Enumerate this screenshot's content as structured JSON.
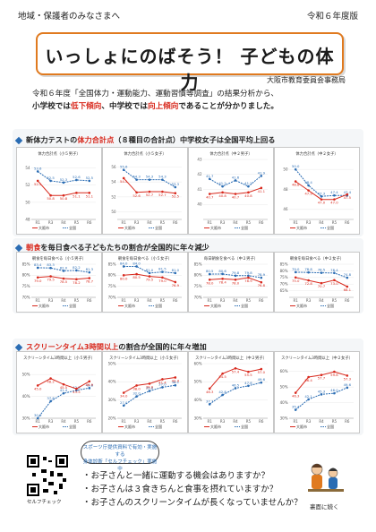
{
  "header": {
    "audience": "地域・保護者のみなさまへ",
    "year": "令和６年度版"
  },
  "title": "いっしょにのばそう！ 子どもの体力",
  "organization": "大阪市教育委員会事務局",
  "intro": {
    "line1": "令和６年度「全国体力・運動能力、運動習慣等調査」の結果分析から、",
    "line2_a": "小学校では",
    "line2_b": "低下傾向",
    "line2_c": "、中学校では",
    "line2_d": "向上傾向",
    "line2_e": "であることが分かりました。"
  },
  "sections": {
    "s1": {
      "pre": "新体力テストの",
      "em": "体力合計点",
      "post": "（８種目の合計点）中学校女子は全国平均上回る"
    },
    "s2": {
      "pre": "",
      "em": "朝食",
      "post": "を毎日食べる子どもたちの割合が全国的に年々減少"
    },
    "s3": {
      "pre": "",
      "em": "スクリーンタイム3時間以上",
      "post": "の割合が全国的に年々増加"
    }
  },
  "colors": {
    "osaka": "#d8281c",
    "national": "#2a6cb3",
    "accent": "#e07a1f"
  },
  "legend": {
    "osaka": "大阪市",
    "national": "全国"
  },
  "categories": [
    "R1",
    "R3",
    "R4",
    "R5",
    "R6"
  ],
  "chart_data": [
    {
      "type": "line",
      "group": "fitness",
      "title": "体力合計点（小５男子）",
      "ylim": [
        48,
        55
      ],
      "ticks": [
        48,
        50,
        52,
        54
      ],
      "series": [
        {
          "name": "全国",
          "values": [
            53.6,
            52.5,
            52.3,
            52.6,
            52.5
          ]
        },
        {
          "name": "大阪市",
          "values": [
            52.5,
            50.8,
            50.8,
            51.1,
            51.1
          ]
        }
      ]
    },
    {
      "type": "line",
      "group": "fitness",
      "title": "体力合計点（小５女子）",
      "ylim": [
        49,
        57
      ],
      "ticks": [
        50,
        52,
        54,
        56
      ],
      "series": [
        {
          "name": "全国",
          "values": [
            55.6,
            54.3,
            54.3,
            54.3,
            53.3
          ]
        },
        {
          "name": "大阪市",
          "values": [
            54.5,
            52.6,
            52.7,
            52.7,
            52.5
          ]
        }
      ]
    },
    {
      "type": "line",
      "group": "fitness",
      "title": "体力合計点（中２男子）",
      "ylim": [
        39,
        43
      ],
      "ticks": [
        40,
        41,
        42,
        43
      ],
      "series": [
        {
          "name": "全国",
          "values": [
            41.7,
            41.2,
            41.6,
            41.2,
            41.9
          ]
        },
        {
          "name": "大阪市",
          "values": [
            40.7,
            40.8,
            40.7,
            40.8,
            41.1
          ]
        }
      ]
    },
    {
      "type": "line",
      "group": "fitness",
      "title": "体力合計点（中２女子）",
      "ylim": [
        45,
        51
      ],
      "ticks": [
        46,
        48,
        50
      ],
      "series": [
        {
          "name": "全国",
          "values": [
            50.0,
            48.4,
            47.3,
            47.4,
            47.4
          ]
        },
        {
          "name": "大阪市",
          "values": [
            48.8,
            47.9,
            47.0,
            47.0,
            47.5
          ]
        }
      ]
    },
    {
      "type": "line",
      "group": "breakfast",
      "title": "朝食を毎日食べる（小５男子）",
      "ylim": [
        70,
        85
      ],
      "ticks": [
        70,
        75,
        80,
        85
      ],
      "unit": "%",
      "series": [
        {
          "name": "全国",
          "values": [
            83.4,
            83.3,
            82.0,
            82.2,
            81.3
          ]
        },
        {
          "name": "大阪市",
          "values": [
            79.0,
            79.5,
            78.5,
            78.2,
            78.7
          ]
        }
      ]
    },
    {
      "type": "line",
      "group": "breakfast",
      "title": "朝食を毎日食べる（小５女子）",
      "ylim": [
        70,
        85
      ],
      "ticks": [
        70,
        75,
        80,
        85
      ],
      "unit": "%",
      "series": [
        {
          "name": "全国",
          "values": [
            84.0,
            84.0,
            81.0,
            81.5,
            81.0
          ]
        },
        {
          "name": "大阪市",
          "values": [
            80.0,
            80.5,
            79.5,
            79.0,
            76.9
          ]
        }
      ]
    },
    {
      "type": "line",
      "group": "breakfast",
      "title": "毎日朝食を食べる（中２男子）",
      "ylim": [
        70,
        85
      ],
      "ticks": [
        70,
        75,
        80,
        85
      ],
      "unit": "%",
      "series": [
        {
          "name": "全国",
          "values": [
            80.5,
            80.6,
            79.8,
            79.8,
            78.9
          ]
        },
        {
          "name": "大阪市",
          "values": [
            78.0,
            78.4,
            78.0,
            78.9,
            76.8
          ]
        }
      ]
    },
    {
      "type": "line",
      "group": "breakfast",
      "title": "朝食を毎日食べる（中２女子）",
      "ylim": [
        60,
        85
      ],
      "ticks": [
        65,
        70,
        75,
        80,
        85
      ],
      "unit": "%",
      "series": [
        {
          "name": "全国",
          "values": [
            79.0,
            78.8,
            78.5,
            78.4,
            74.8
          ]
        },
        {
          "name": "大阪市",
          "values": [
            75.0,
            72.8,
            70.7,
            73.0,
            68.1
          ]
        }
      ]
    },
    {
      "type": "line",
      "group": "screen",
      "title": "スクリーンタイム3時間以上（小５男子）",
      "ylim": [
        30,
        55
      ],
      "ticks": [
        30,
        40,
        50
      ],
      "unit": "%",
      "series": [
        {
          "name": "全国",
          "values": [
            30.0,
            37.8,
            41.4,
            42.8,
            43.8
          ]
        },
        {
          "name": "大阪市",
          "values": [
            45.0,
            48.2,
            45.5,
            43.5,
            46.9
          ]
        }
      ]
    },
    {
      "type": "line",
      "group": "screen",
      "title": "スクリーンタイム3時間以上（小５女子）",
      "ylim": [
        20,
        50
      ],
      "ticks": [
        20,
        30,
        40,
        50
      ],
      "unit": "%",
      "series": [
        {
          "name": "全国",
          "values": [
            27.0,
            32.0,
            35.0,
            37.0,
            38.1
          ]
        },
        {
          "name": "大阪市",
          "values": [
            34.0,
            38.0,
            39.0,
            41.4,
            42.4
          ]
        }
      ]
    },
    {
      "type": "line",
      "group": "screen",
      "title": "スクリーンタイム3時間以上（中２男子）",
      "ylim": [
        30,
        60
      ],
      "ticks": [
        30,
        40,
        50,
        60
      ],
      "unit": "%",
      "series": [
        {
          "name": "全国",
          "values": [
            37.7,
            42.8,
            46.5,
            47.8,
            49.6
          ]
        },
        {
          "name": "大阪市",
          "values": [
            46.3,
            54.5,
            57.4,
            55.5,
            57.0
          ]
        }
      ]
    },
    {
      "type": "line",
      "group": "screen",
      "title": "スクリーンタイム3時間以上（中２女子）",
      "ylim": [
        30,
        65
      ],
      "ticks": [
        30,
        40,
        50,
        60
      ],
      "unit": "%",
      "series": [
        {
          "name": "全国",
          "values": [
            35.4,
            42.1,
            45.3,
            46.0,
            49.6
          ]
        },
        {
          "name": "大阪市",
          "values": [
            46.3,
            56.4,
            57.7,
            59.8,
            57.3
          ]
        }
      ]
    }
  ],
  "bubble": {
    "line1": "スポーツ庁提供資料で有効・実施する",
    "line2": "身体診断「セルフチェック」実施中"
  },
  "notes": [
    "・お子さんと一緒に運動する機会はありますか？",
    "・お子さんは３食きちんと食事を摂れていますか？",
    "・お子さんのスクリーンタイムが長くなっていませんか？"
  ],
  "qr_label": "セルフチェック",
  "back_label": "裏面に続く"
}
